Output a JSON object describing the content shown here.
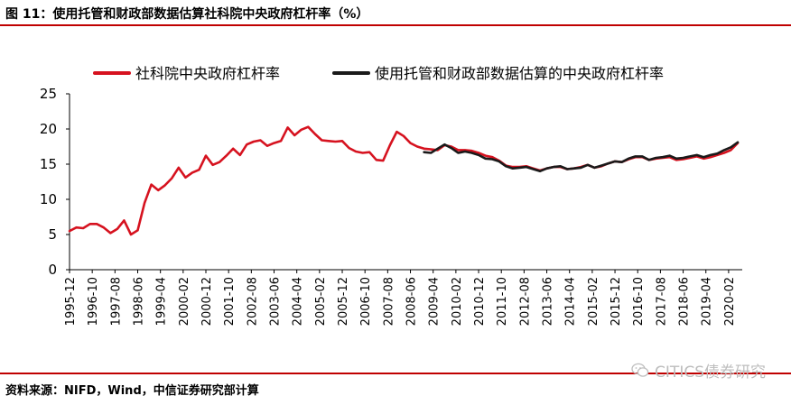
{
  "header": {
    "title": "图 11：使用托管和财政部数据估算社科院中央政府杠杆率（%）"
  },
  "footer": {
    "source": "资料来源：NIFD，Wind，中信证券研究部计算"
  },
  "watermark": {
    "text": "CITICS债券研究",
    "icon": "wechat-icon",
    "color": "#bdbdbd"
  },
  "chart_data": {
    "type": "line",
    "ylim": [
      0,
      25
    ],
    "yticks": [
      0,
      5,
      10,
      15,
      20,
      25
    ],
    "grid": false,
    "legend_position": "top",
    "categories": [
      "1995-12",
      "1996-10",
      "1997-08",
      "1998-06",
      "1999-04",
      "2000-02",
      "2000-12",
      "2001-10",
      "2002-08",
      "2003-06",
      "2004-04",
      "2005-02",
      "2005-12",
      "2006-10",
      "2007-08",
      "2008-06",
      "2009-04",
      "2010-02",
      "2010-12",
      "2011-10",
      "2012-08",
      "2013-06",
      "2014-04",
      "2015-02",
      "2015-12",
      "2016-10",
      "2017-08",
      "2018-06",
      "2019-04",
      "2020-02"
    ],
    "colors": {
      "series1": "#d6121f",
      "series2": "#1a1a1a",
      "accent": "#c00000"
    },
    "series": [
      {
        "name": "社科院中央政府杠杆率",
        "x": [
          1995.917,
          1996.167,
          1996.417,
          1996.667,
          1996.917,
          1997.167,
          1997.417,
          1997.667,
          1997.917,
          1998.167,
          1998.417,
          1998.667,
          1998.917,
          1999.167,
          1999.417,
          1999.667,
          1999.917,
          2000.167,
          2000.417,
          2000.667,
          2000.917,
          2001.167,
          2001.417,
          2001.667,
          2001.917,
          2002.167,
          2002.417,
          2002.667,
          2002.917,
          2003.167,
          2003.417,
          2003.667,
          2003.917,
          2004.167,
          2004.417,
          2004.667,
          2004.917,
          2005.167,
          2005.417,
          2005.667,
          2005.917,
          2006.167,
          2006.417,
          2006.667,
          2006.917,
          2007.167,
          2007.417,
          2007.667,
          2007.917,
          2008.167,
          2008.417,
          2008.667,
          2008.917,
          2009.167,
          2009.417,
          2009.667,
          2009.917,
          2010.167,
          2010.417,
          2010.667,
          2010.917,
          2011.167,
          2011.417,
          2011.667,
          2011.917,
          2012.167,
          2012.417,
          2012.667,
          2012.917,
          2013.167,
          2013.417,
          2013.667,
          2013.917,
          2014.167,
          2014.417,
          2014.667,
          2014.917,
          2015.167,
          2015.417,
          2015.667,
          2015.917,
          2016.167,
          2016.417,
          2016.667,
          2016.917,
          2017.167,
          2017.417,
          2017.667,
          2017.917,
          2018.167,
          2018.417,
          2018.667,
          2018.917,
          2019.167,
          2019.417,
          2019.667,
          2019.917,
          2020.167,
          2020.417
        ],
        "values": [
          5.5,
          6.0,
          5.9,
          6.5,
          6.5,
          6.0,
          5.2,
          5.8,
          7.0,
          5.0,
          5.6,
          9.5,
          12.1,
          11.3,
          12.0,
          13.0,
          14.5,
          13.1,
          13.8,
          14.2,
          16.2,
          14.9,
          15.3,
          16.2,
          17.2,
          16.3,
          17.8,
          18.2,
          18.4,
          17.6,
          18.0,
          18.3,
          20.2,
          19.1,
          19.9,
          20.3,
          19.3,
          18.4,
          18.3,
          18.2,
          18.3,
          17.3,
          16.8,
          16.6,
          16.7,
          15.6,
          15.5,
          17.7,
          19.6,
          19.0,
          18.0,
          17.5,
          17.2,
          17.1,
          17.0,
          17.7,
          17.5,
          17.0,
          17.0,
          16.9,
          16.6,
          16.2,
          16.0,
          15.5,
          14.8,
          14.6,
          14.6,
          14.7,
          14.4,
          14.1,
          14.4,
          14.6,
          14.6,
          14.3,
          14.4,
          14.6,
          14.9,
          14.5,
          14.7,
          15.1,
          15.4,
          15.3,
          15.7,
          16.0,
          16.0,
          15.6,
          15.8,
          15.9,
          16.0,
          15.6,
          15.7,
          15.9,
          16.1,
          15.8,
          16.0,
          16.3,
          16.6,
          17.0,
          18.0
        ]
      },
      {
        "name": "使用托管和财政部数据估算的中央政府杠杆率",
        "x": [
          2008.917,
          2009.167,
          2009.417,
          2009.667,
          2009.917,
          2010.167,
          2010.417,
          2010.667,
          2010.917,
          2011.167,
          2011.417,
          2011.667,
          2011.917,
          2012.167,
          2012.417,
          2012.667,
          2012.917,
          2013.167,
          2013.417,
          2013.667,
          2013.917,
          2014.167,
          2014.417,
          2014.667,
          2014.917,
          2015.167,
          2015.417,
          2015.667,
          2015.917,
          2016.167,
          2016.417,
          2016.667,
          2016.917,
          2017.167,
          2017.417,
          2017.667,
          2017.917,
          2018.167,
          2018.417,
          2018.667,
          2018.917,
          2019.167,
          2019.417,
          2019.667,
          2019.917,
          2020.167,
          2020.417
        ],
        "values": [
          16.7,
          16.6,
          17.2,
          17.8,
          17.3,
          16.6,
          16.8,
          16.6,
          16.3,
          15.8,
          15.7,
          15.4,
          14.7,
          14.4,
          14.5,
          14.6,
          14.3,
          14.0,
          14.4,
          14.6,
          14.7,
          14.3,
          14.4,
          14.5,
          14.9,
          14.5,
          14.8,
          15.1,
          15.4,
          15.3,
          15.8,
          16.1,
          16.1,
          15.6,
          15.9,
          16.0,
          16.2,
          15.8,
          15.9,
          16.1,
          16.3,
          16.0,
          16.3,
          16.5,
          17.0,
          17.4,
          18.1
        ]
      }
    ]
  }
}
